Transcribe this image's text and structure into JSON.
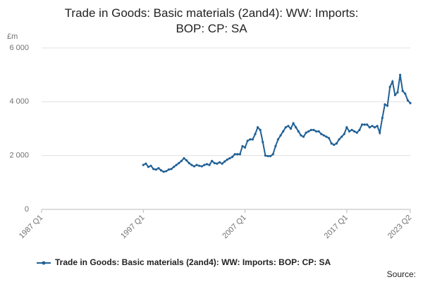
{
  "chart_data": {
    "type": "line",
    "title": "Trade in Goods: Basic materials (2and4): WW: Imports: BOP: CP: SA",
    "y_label": "£m",
    "source": "Source:",
    "categories": [
      "1987 Q1",
      null,
      null,
      null,
      null,
      null,
      null,
      null,
      null,
      null,
      null,
      null,
      null,
      null,
      null,
      null,
      null,
      null,
      null,
      null,
      null,
      null,
      null,
      null,
      null,
      null,
      null,
      null,
      null,
      null,
      null,
      null,
      null,
      null,
      null,
      null,
      null,
      null,
      null,
      null,
      "1997 Q1",
      null,
      null,
      null,
      null,
      null,
      null,
      null,
      null,
      null,
      null,
      null,
      null,
      null,
      null,
      null,
      null,
      null,
      null,
      null,
      null,
      null,
      null,
      null,
      null,
      null,
      null,
      null,
      null,
      null,
      null,
      null,
      null,
      null,
      null,
      null,
      null,
      null,
      null,
      null,
      "2007 Q1",
      null,
      null,
      null,
      null,
      null,
      null,
      null,
      null,
      null,
      null,
      null,
      null,
      null,
      null,
      null,
      null,
      null,
      null,
      null,
      null,
      null,
      null,
      null,
      null,
      null,
      null,
      null,
      null,
      null,
      null,
      null,
      null,
      null,
      null,
      null,
      null,
      null,
      null,
      null,
      "2017 Q1",
      null,
      null,
      null,
      null,
      null,
      null,
      null,
      null,
      null,
      null,
      null,
      null,
      null,
      null,
      null,
      null,
      null,
      null,
      null,
      null,
      null,
      null,
      null,
      null,
      "2023 Q2"
    ],
    "series": [
      {
        "name": "Trade in Goods: Basic materials (2and4): WW: Imports: BOP: CP: SA",
        "color": "#206095",
        "values": [
          null,
          null,
          null,
          null,
          null,
          null,
          null,
          null,
          null,
          null,
          null,
          null,
          null,
          null,
          null,
          null,
          null,
          null,
          null,
          null,
          null,
          null,
          null,
          null,
          null,
          null,
          null,
          null,
          null,
          null,
          null,
          null,
          null,
          null,
          null,
          null,
          null,
          null,
          null,
          null,
          1650,
          1700,
          1580,
          1620,
          1500,
          1480,
          1530,
          1450,
          1400,
          1420,
          1480,
          1500,
          1580,
          1650,
          1720,
          1800,
          1900,
          1820,
          1720,
          1650,
          1600,
          1650,
          1620,
          1600,
          1650,
          1680,
          1650,
          1800,
          1720,
          1700,
          1750,
          1700,
          1780,
          1850,
          1900,
          1950,
          2050,
          2050,
          2050,
          2350,
          2300,
          2550,
          2600,
          2600,
          2800,
          3050,
          2950,
          2500,
          2000,
          1980,
          1980,
          2050,
          2350,
          2600,
          2750,
          2900,
          3050,
          3100,
          3000,
          3200,
          3050,
          2900,
          2750,
          2700,
          2850,
          2900,
          2950,
          2950,
          2900,
          2900,
          2800,
          2750,
          2700,
          2650,
          2450,
          2400,
          2450,
          2600,
          2700,
          2800,
          3050,
          2900,
          2950,
          2900,
          2850,
          2950,
          3150,
          3150,
          3150,
          3050,
          3100,
          3050,
          3100,
          2850,
          3400,
          3900,
          3850,
          4550,
          4750,
          4250,
          4350,
          5000,
          4400,
          4300,
          4050,
          3950
        ]
      }
    ],
    "ylim": [
      0,
      6000
    ],
    "yticks": [
      0,
      {
        "value": 2000,
        "label": "2 000"
      },
      {
        "value": 4000,
        "label": "4 000"
      },
      {
        "value": 6000,
        "label": "6 000"
      }
    ],
    "grid": true,
    "legend": "bottom"
  }
}
